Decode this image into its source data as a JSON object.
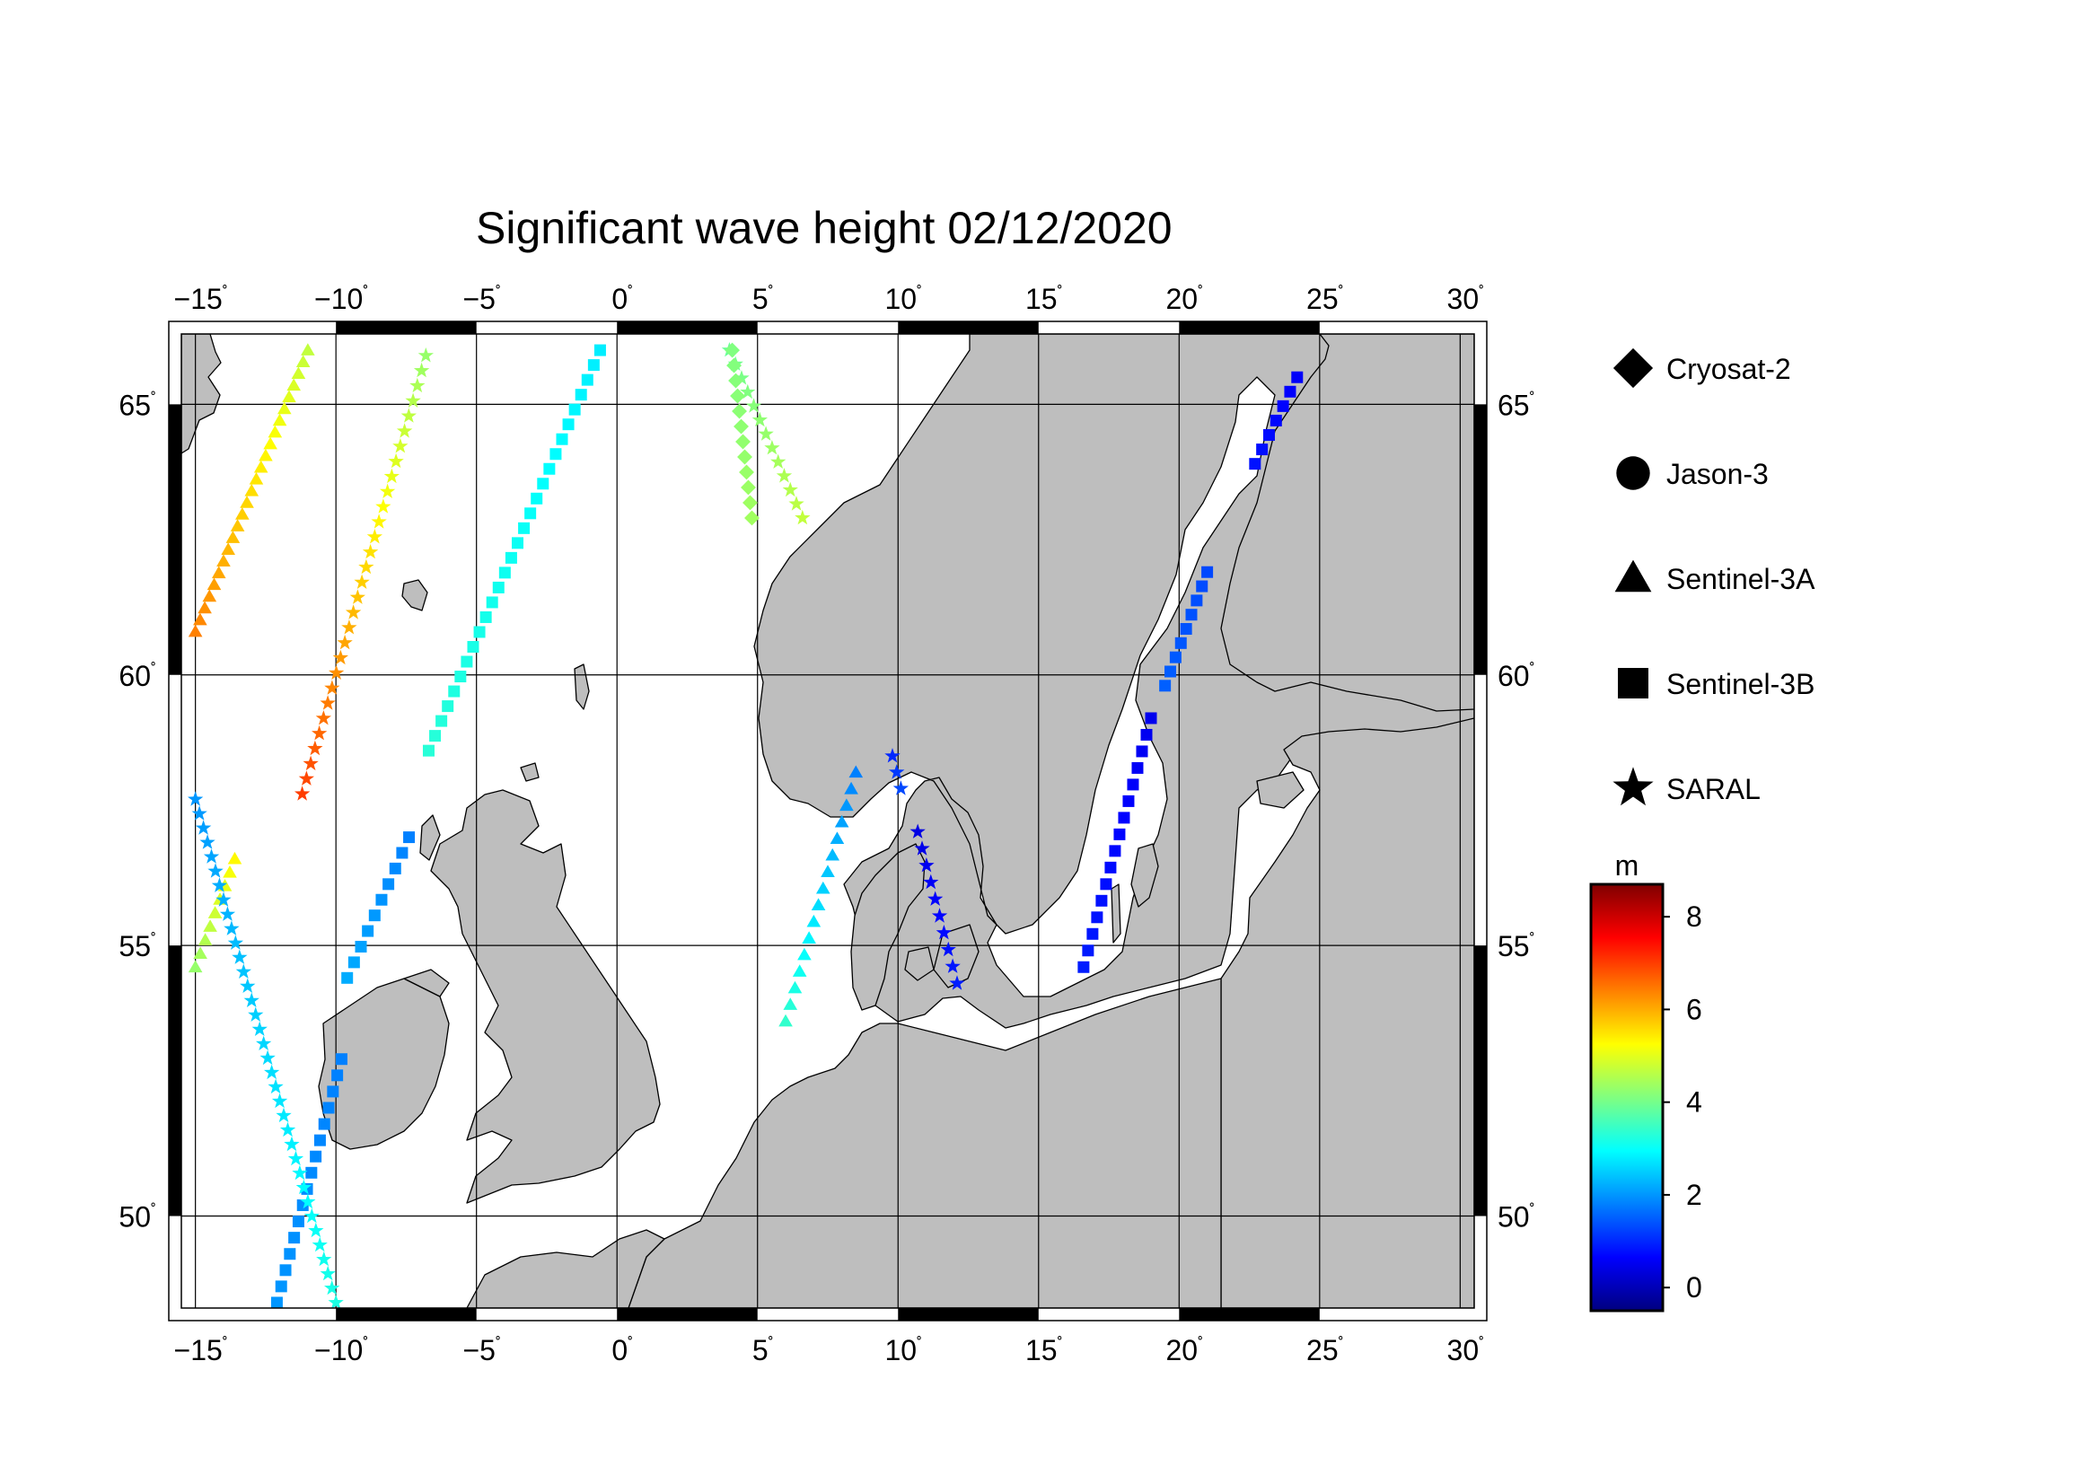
{
  "title": "Significant wave height 02/12/2020",
  "map": {
    "lon_min": -15.5,
    "lon_max": 30.5,
    "lat_min": 48.3,
    "lat_max": 66.3,
    "lon_ticks": [
      -15,
      -10,
      -5,
      0,
      5,
      10,
      15,
      20,
      25,
      30
    ],
    "lat_ticks": [
      50,
      55,
      60,
      65
    ],
    "land_color": "#bebebe",
    "sea_color": "#ffffff"
  },
  "legend": {
    "items": [
      {
        "label": "Cryosat-2",
        "symbol": "diamond"
      },
      {
        "label": "Jason-3",
        "symbol": "circle"
      },
      {
        "label": "Sentinel-3A",
        "symbol": "triangle"
      },
      {
        "label": "Sentinel-3B",
        "symbol": "square"
      },
      {
        "label": "SARAL",
        "symbol": "star"
      }
    ]
  },
  "colorbar": {
    "unit": "m",
    "min": -0.5,
    "max": 8.7,
    "ticks": [
      "8",
      "6",
      "4",
      "2",
      "0"
    ],
    "tick_values": [
      8,
      6,
      4,
      2,
      0
    ],
    "colors": [
      "#00007f",
      "#0000ff",
      "#0080ff",
      "#00ffff",
      "#80ff80",
      "#ffff00",
      "#ff8000",
      "#ff0000",
      "#7f0000"
    ]
  },
  "chart_data": {
    "type": "scatter",
    "title": "Significant wave height 02/12/2020",
    "xlabel": "",
    "ylabel": "",
    "xlim": [
      -15.5,
      30.5
    ],
    "ylim": [
      48.3,
      66.3
    ],
    "color_scale": {
      "label": "m",
      "range": [
        -0.5,
        8.7
      ]
    },
    "series": [
      {
        "name": "Sentinel-3A",
        "symbol": "triangle",
        "points": [
          {
            "lon0": -11.0,
            "lat0": 66.0,
            "lon1": -15.0,
            "lat1": 60.8,
            "n": 25,
            "v0": 4.7,
            "v1": 6.4
          },
          {
            "lon0": -15.0,
            "lat0": 54.6,
            "lon1": -13.6,
            "lat1": 56.6,
            "n": 9,
            "v0": 4.3,
            "v1": 5.3
          },
          {
            "lon0": 8.5,
            "lat0": 58.2,
            "lon1": 6.0,
            "lat1": 53.6,
            "n": 16,
            "v0": 1.8,
            "v1": 3.4
          }
        ]
      },
      {
        "name": "Sentinel-3B",
        "symbol": "square",
        "points": [
          {
            "lon0": -0.6,
            "lat0": 66.0,
            "lon1": -6.7,
            "lat1": 58.6,
            "n": 28,
            "v0": 2.8,
            "v1": 3.3
          },
          {
            "lon0": -7.4,
            "lat0": 57.0,
            "lon1": -9.6,
            "lat1": 54.4,
            "n": 10,
            "v0": 1.8,
            "v1": 2.2
          },
          {
            "lon0": -9.8,
            "lat0": 52.9,
            "lon1": -12.1,
            "lat1": 48.4,
            "n": 16,
            "v0": 1.8,
            "v1": 2.0
          },
          {
            "lon0": 24.2,
            "lat0": 65.5,
            "lon1": 22.7,
            "lat1": 63.9,
            "n": 7,
            "v0": 0.6,
            "v1": 0.8
          },
          {
            "lon0": 21.0,
            "lat0": 61.9,
            "lon1": 19.5,
            "lat1": 59.8,
            "n": 9,
            "v0": 1.3,
            "v1": 1.5
          },
          {
            "lon0": 19.0,
            "lat0": 59.2,
            "lon1": 16.6,
            "lat1": 54.6,
            "n": 16,
            "v0": 0.5,
            "v1": 0.9
          }
        ]
      },
      {
        "name": "SARAL",
        "symbol": "star",
        "points": [
          {
            "lon0": -6.8,
            "lat0": 65.9,
            "lon1": -11.2,
            "lat1": 57.8,
            "n": 30,
            "v0": 4.3,
            "v1": 7.0
          },
          {
            "lon0": -15.0,
            "lat0": 57.7,
            "lon1": -10.0,
            "lat1": 48.4,
            "n": 36,
            "v0": 2.0,
            "v1": 3.2
          },
          {
            "lon0": 4.0,
            "lat0": 66.0,
            "lon1": 6.6,
            "lat1": 62.9,
            "n": 13,
            "v0": 3.9,
            "v1": 4.7
          },
          {
            "lon0": 9.8,
            "lat0": 58.5,
            "lon1": 10.1,
            "lat1": 57.9,
            "n": 3,
            "v0": 1.0,
            "v1": 1.3
          },
          {
            "lon0": 10.7,
            "lat0": 57.1,
            "lon1": 12.1,
            "lat1": 54.3,
            "n": 10,
            "v0": 0.4,
            "v1": 0.9
          }
        ]
      },
      {
        "name": "Cryosat-2",
        "symbol": "diamond",
        "points": [
          {
            "lon0": 4.1,
            "lat0": 66.0,
            "lon1": 4.8,
            "lat1": 62.9,
            "n": 12,
            "v0": 4.1,
            "v1": 4.4
          }
        ]
      },
      {
        "name": "Jason-3",
        "symbol": "circle",
        "points": []
      }
    ]
  }
}
